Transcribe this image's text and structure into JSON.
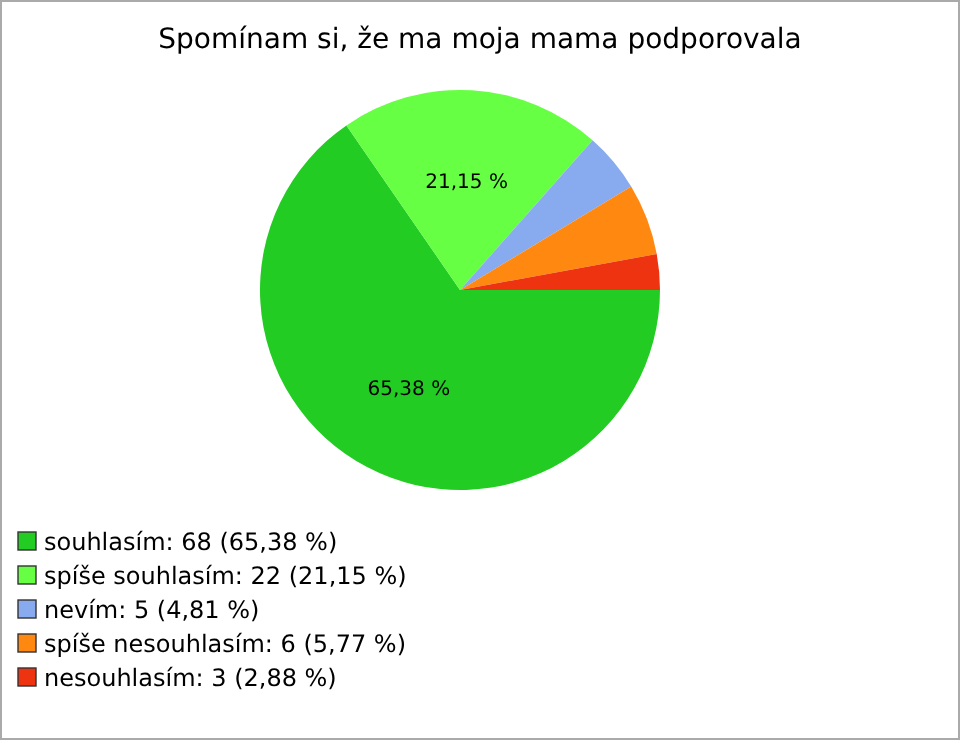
{
  "chart_data": {
    "type": "pie",
    "title": "Spomínam si, že ma moja mama podporovala",
    "categories": [
      "souhlasím: 68 (65,38 %)",
      "spíše souhlasím: 22 (21,15 %)",
      "nevím: 5 (4,81 %)",
      "spíše nesouhlasím: 6 (5,77 %)",
      "nesouhlasím: 3 (2,88 %)"
    ],
    "values": [
      65.38,
      21.15,
      4.81,
      5.77,
      2.88
    ],
    "colors": [
      "#22cc22",
      "#66ff44",
      "#88aaee",
      "#ff8811",
      "#ee3311"
    ],
    "value_labels": [
      "65,38 %",
      "21,15 %",
      null,
      null,
      null
    ],
    "legend": "bottom left"
  }
}
